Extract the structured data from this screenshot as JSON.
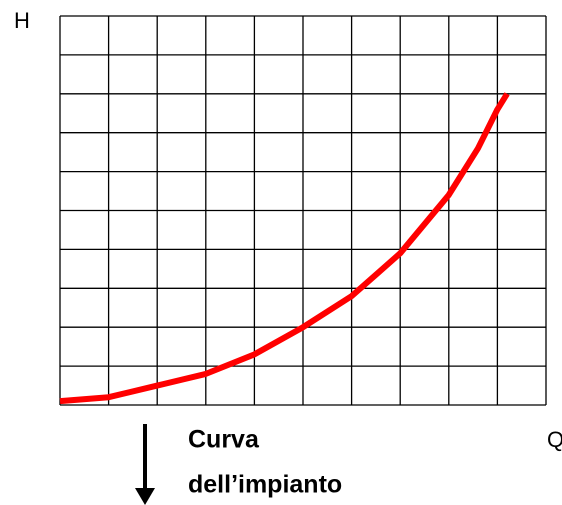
{
  "chart_data": {
    "type": "line",
    "y_label": "H",
    "x_label": "Q",
    "annotation": [
      "Curva",
      "dell’impianto"
    ],
    "xlim": [
      0,
      10
    ],
    "ylim": [
      0,
      10
    ],
    "xticks": [
      0,
      1,
      2,
      3,
      4,
      5,
      6,
      7,
      8,
      9,
      10
    ],
    "yticks": [
      0,
      1,
      2,
      3,
      4,
      5,
      6,
      7,
      8,
      9,
      10
    ],
    "grid": true,
    "series": [
      {
        "color": "#ff0000",
        "x": [
          0,
          1,
          2,
          3,
          4,
          5,
          6,
          7,
          8,
          8.6,
          9,
          9.2
        ],
        "values": [
          0.1,
          0.2,
          0.5,
          0.8,
          1.3,
          2.0,
          2.8,
          3.9,
          5.4,
          6.6,
          7.6,
          8.0
        ]
      }
    ]
  }
}
